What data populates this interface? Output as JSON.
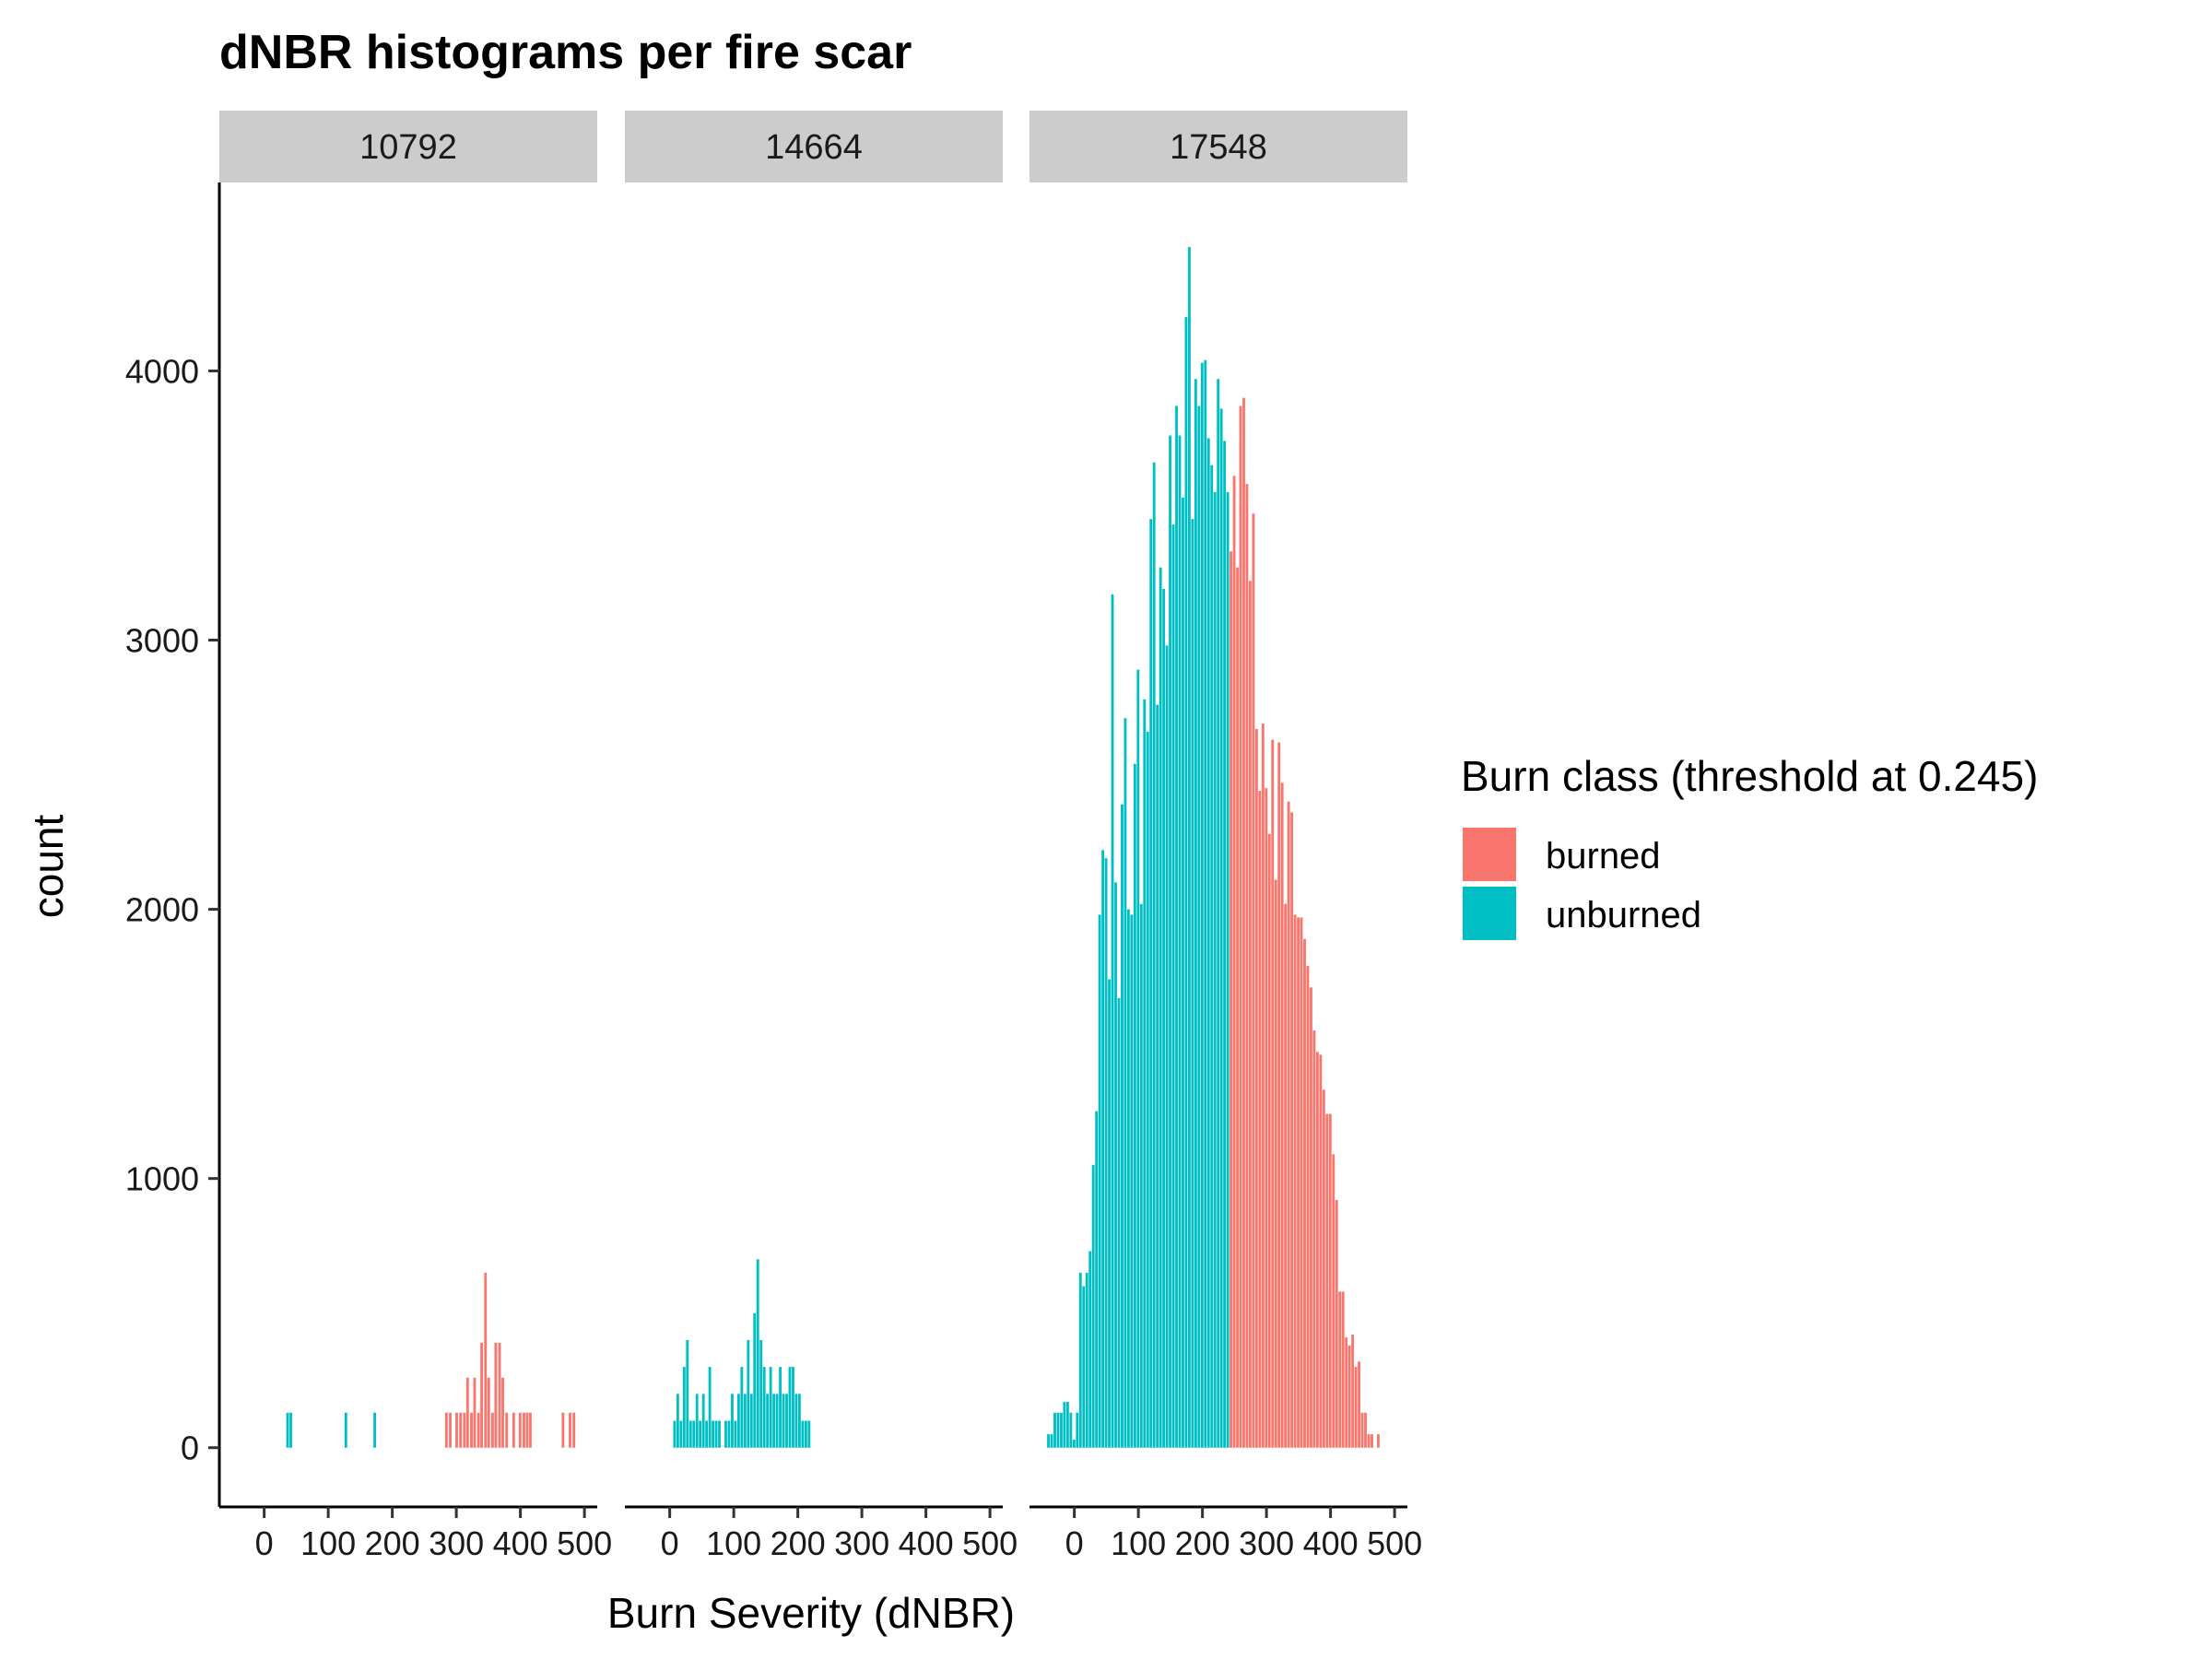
{
  "chart_data": {
    "type": "bar",
    "title": "dNBR histograms per fire scar",
    "xlabel": "Burn Severity (dNBR)",
    "ylabel": "count",
    "xlim": [
      -70,
      520
    ],
    "ylim": [
      -220,
      4700
    ],
    "x_ticks": [
      0,
      100,
      200,
      300,
      400,
      500
    ],
    "x_tick_labels": [
      "0",
      "100",
      "200",
      "300",
      "400",
      "500"
    ],
    "y_ticks": [
      0,
      1000,
      2000,
      3000,
      4000
    ],
    "y_tick_labels": [
      "0",
      "1000",
      "2000",
      "3000",
      "4000"
    ],
    "bin_width": 5,
    "threshold": 245,
    "legend": {
      "title": "Burn class (threshold at 0.245)",
      "position": "right",
      "entries": [
        {
          "name": "burned",
          "color": "#F8766D"
        },
        {
          "name": "unburned",
          "color": "#00BFC4"
        }
      ]
    },
    "colors": {
      "burned": "#F8766D",
      "unburned": "#00BFC4",
      "strip": "#cccccc"
    },
    "facets": [
      {
        "label": "10792",
        "bins": [
          [
            37,
            130
          ],
          [
            42,
            130
          ],
          [
            128,
            130
          ],
          [
            173,
            130
          ],
          [
            285,
            130
          ],
          [
            291,
            130
          ],
          [
            301,
            130
          ],
          [
            307,
            130
          ],
          [
            313,
            130
          ],
          [
            318,
            260
          ],
          [
            324,
            130
          ],
          [
            329,
            260
          ],
          [
            335,
            130
          ],
          [
            340,
            390
          ],
          [
            346,
            650
          ],
          [
            351,
            260
          ],
          [
            357,
            130
          ],
          [
            362,
            390
          ],
          [
            368,
            390
          ],
          [
            373,
            260
          ],
          [
            379,
            130
          ],
          [
            390,
            130
          ],
          [
            400,
            130
          ],
          [
            406,
            130
          ],
          [
            411,
            130
          ],
          [
            416,
            130
          ],
          [
            467,
            130
          ],
          [
            478,
            130
          ],
          [
            484,
            130
          ]
        ]
      },
      {
        "label": "14664",
        "bins": [
          [
            8,
            100
          ],
          [
            13,
            200
          ],
          [
            18,
            100
          ],
          [
            23,
            300
          ],
          [
            28,
            400
          ],
          [
            33,
            100
          ],
          [
            38,
            100
          ],
          [
            43,
            200
          ],
          [
            48,
            100
          ],
          [
            53,
            200
          ],
          [
            58,
            100
          ],
          [
            63,
            300
          ],
          [
            68,
            100
          ],
          [
            73,
            100
          ],
          [
            78,
            100
          ],
          [
            88,
            100
          ],
          [
            93,
            100
          ],
          [
            98,
            200
          ],
          [
            103,
            100
          ],
          [
            108,
            200
          ],
          [
            113,
            300
          ],
          [
            118,
            200
          ],
          [
            123,
            400
          ],
          [
            128,
            200
          ],
          [
            133,
            500
          ],
          [
            138,
            700
          ],
          [
            143,
            400
          ],
          [
            148,
            300
          ],
          [
            153,
            200
          ],
          [
            158,
            300
          ],
          [
            163,
            200
          ],
          [
            168,
            200
          ],
          [
            173,
            300
          ],
          [
            178,
            200
          ],
          [
            183,
            200
          ],
          [
            188,
            300
          ],
          [
            193,
            300
          ],
          [
            198,
            200
          ],
          [
            203,
            200
          ],
          [
            208,
            100
          ],
          [
            213,
            100
          ],
          [
            218,
            100
          ]
        ]
      },
      {
        "label": "17548",
        "bins": [
          [
            -40,
            50
          ],
          [
            -35,
            50
          ],
          [
            -30,
            130
          ],
          [
            -25,
            130
          ],
          [
            -20,
            130
          ],
          [
            -15,
            170
          ],
          [
            -10,
            170
          ],
          [
            -5,
            130
          ],
          [
            0,
            30
          ],
          [
            5,
            130
          ],
          [
            10,
            650
          ],
          [
            15,
            600
          ],
          [
            20,
            650
          ],
          [
            25,
            730
          ],
          [
            30,
            1050
          ],
          [
            35,
            1250
          ],
          [
            40,
            1980
          ],
          [
            45,
            2220
          ],
          [
            50,
            2190
          ],
          [
            55,
            1740
          ],
          [
            60,
            3170
          ],
          [
            65,
            2100
          ],
          [
            70,
            1670
          ],
          [
            75,
            2390
          ],
          [
            80,
            2710
          ],
          [
            85,
            2000
          ],
          [
            90,
            1980
          ],
          [
            95,
            2540
          ],
          [
            100,
            2890
          ],
          [
            105,
            2020
          ],
          [
            110,
            2780
          ],
          [
            115,
            2660
          ],
          [
            120,
            3450
          ],
          [
            125,
            3660
          ],
          [
            130,
            2760
          ],
          [
            135,
            3270
          ],
          [
            140,
            3190
          ],
          [
            145,
            2980
          ],
          [
            150,
            3760
          ],
          [
            155,
            3430
          ],
          [
            160,
            3870
          ],
          [
            165,
            3760
          ],
          [
            170,
            3530
          ],
          [
            175,
            4200
          ],
          [
            180,
            4460
          ],
          [
            185,
            3450
          ],
          [
            190,
            3970
          ],
          [
            195,
            3870
          ],
          [
            200,
            4030
          ],
          [
            205,
            4040
          ],
          [
            210,
            3750
          ],
          [
            215,
            3650
          ],
          [
            220,
            3550
          ],
          [
            225,
            3970
          ],
          [
            230,
            3860
          ],
          [
            235,
            3740
          ],
          [
            240,
            3550
          ],
          [
            245,
            3330
          ],
          [
            250,
            3610
          ],
          [
            255,
            3270
          ],
          [
            260,
            3870
          ],
          [
            265,
            3900
          ],
          [
            270,
            3580
          ],
          [
            275,
            3220
          ],
          [
            280,
            3470
          ],
          [
            285,
            2670
          ],
          [
            290,
            2440
          ],
          [
            295,
            2690
          ],
          [
            300,
            2450
          ],
          [
            305,
            2280
          ],
          [
            310,
            2630
          ],
          [
            315,
            2110
          ],
          [
            320,
            2620
          ],
          [
            325,
            2470
          ],
          [
            330,
            2020
          ],
          [
            335,
            2400
          ],
          [
            340,
            2360
          ],
          [
            345,
            1980
          ],
          [
            350,
            1970
          ],
          [
            355,
            1970
          ],
          [
            360,
            1890
          ],
          [
            365,
            1790
          ],
          [
            370,
            1710
          ],
          [
            375,
            1550
          ],
          [
            380,
            1470
          ],
          [
            385,
            1460
          ],
          [
            390,
            1330
          ],
          [
            395,
            1240
          ],
          [
            400,
            1240
          ],
          [
            405,
            1090
          ],
          [
            410,
            920
          ],
          [
            415,
            580
          ],
          [
            420,
            580
          ],
          [
            425,
            410
          ],
          [
            430,
            380
          ],
          [
            435,
            420
          ],
          [
            440,
            300
          ],
          [
            445,
            320
          ],
          [
            450,
            130
          ],
          [
            455,
            130
          ],
          [
            460,
            50
          ],
          [
            465,
            50
          ],
          [
            475,
            50
          ]
        ]
      }
    ]
  }
}
